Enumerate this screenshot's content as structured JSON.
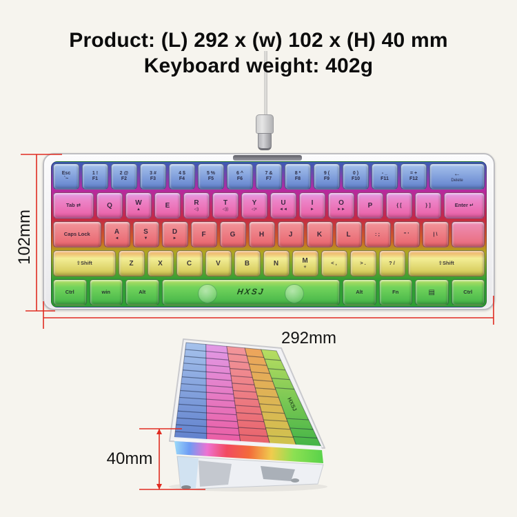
{
  "title": {
    "line1": "Product: (L) 292  x (w) 102  x (H) 40 mm",
    "line2": "Keyboard weight: 402g"
  },
  "dimensions": {
    "width_label": "292mm",
    "depth_label": "102mm",
    "height_label": "40mm"
  },
  "brand_logo": "HXSJ",
  "colors": {
    "dimension_line": "#e02b20",
    "row_blue": "#6181cd",
    "row_pink": "#ea5ea4",
    "row_red": "#e8636c",
    "row_yellow": "#d2c64e",
    "row_green": "#43b447",
    "case": "#f2f2f4"
  },
  "keyboard": {
    "rows": [
      {
        "name": "number-row",
        "c1": "#a6c2ec",
        "c2": "#6181cd",
        "keys": [
          {
            "t": "Esc",
            "b": "`~",
            "w": 1
          },
          {
            "t": "1 !",
            "b": "F1",
            "w": 1
          },
          {
            "t": "2 @",
            "b": "F2",
            "w": 1
          },
          {
            "t": "3 #",
            "b": "F3",
            "w": 1
          },
          {
            "t": "4 $",
            "b": "F4",
            "w": 1
          },
          {
            "t": "5 %",
            "b": "F5",
            "w": 1
          },
          {
            "t": "6 ^",
            "b": "F6",
            "w": 1
          },
          {
            "t": "7 &",
            "b": "F7",
            "w": 1
          },
          {
            "t": "8 *",
            "b": "F8",
            "w": 1
          },
          {
            "t": "9 (",
            "b": "F9",
            "w": 1
          },
          {
            "t": "0 )",
            "b": "F10",
            "w": 1
          },
          {
            "t": "- _",
            "b": "F11",
            "w": 1
          },
          {
            "t": "= +",
            "b": "F12",
            "w": 1
          },
          {
            "t": "←",
            "b": "Delete",
            "w": 2
          }
        ]
      },
      {
        "name": "qwerty-row",
        "c1": "#e19ae6",
        "cm": "#ec84c8",
        "c2": "#ea5ea4",
        "keys": [
          {
            "t": "Tab ⇄",
            "w": 1.5
          },
          {
            "t": "Q",
            "w": 1
          },
          {
            "t": "W",
            "b": "▲",
            "w": 1
          },
          {
            "t": "E",
            "w": 1
          },
          {
            "t": "R",
            "b": "◁)",
            "w": 1
          },
          {
            "t": "T",
            "b": "◁))",
            "w": 1
          },
          {
            "t": "Y",
            "b": "◁×",
            "w": 1
          },
          {
            "t": "U",
            "b": "◄◄",
            "w": 1
          },
          {
            "t": "I",
            "b": "►",
            "w": 1
          },
          {
            "t": "O",
            "b": "►►",
            "w": 1
          },
          {
            "t": "P",
            "w": 1
          },
          {
            "t": "{ [",
            "w": 1
          },
          {
            "t": "} ]",
            "w": 1
          },
          {
            "t": "Enter ↵",
            "w": 1.5
          }
        ]
      },
      {
        "name": "home-row",
        "c1": "#f2969b",
        "c2": "#e8636c",
        "keys": [
          {
            "t": "Caps Lock",
            "w": 1.75
          },
          {
            "t": "A",
            "b": "◄",
            "w": 1
          },
          {
            "t": "S",
            "b": "▼",
            "w": 1
          },
          {
            "t": "D",
            "b": "►",
            "w": 1
          },
          {
            "t": "F",
            "w": 1
          },
          {
            "t": "G",
            "w": 1
          },
          {
            "t": "H",
            "w": 1
          },
          {
            "t": "J",
            "w": 1
          },
          {
            "t": "K",
            "w": 1
          },
          {
            "t": "L",
            "w": 1
          },
          {
            "t": ": ;",
            "w": 1
          },
          {
            "t": "\" '",
            "w": 1
          },
          {
            "t": "| \\",
            "w": 1
          },
          {
            "t": "",
            "w": 1.25,
            "stub": true,
            "c1": "#ee8fb8",
            "c2": "#e96a78"
          }
        ]
      },
      {
        "name": "shift-row",
        "c1": "#eda45c",
        "cm": "#f3ee96",
        "c2": "#cfc34e",
        "keys": [
          {
            "t": "⇧Shift",
            "w": 2.25
          },
          {
            "t": "Z",
            "w": 1
          },
          {
            "t": "X",
            "w": 1
          },
          {
            "t": "C",
            "w": 1
          },
          {
            "t": "V",
            "w": 1
          },
          {
            "t": "B",
            "w": 1
          },
          {
            "t": "N",
            "w": 1
          },
          {
            "t": "M",
            "b": "☀",
            "w": 1
          },
          {
            "t": "< ,",
            "w": 1
          },
          {
            "t": "> .",
            "w": 1
          },
          {
            "t": "? /",
            "w": 1
          },
          {
            "t": "⇧Shift",
            "w": 2.75
          }
        ]
      },
      {
        "name": "bottom-row",
        "c1": "#b8dd62",
        "cm": "#72d35c",
        "c2": "#43b447",
        "keys": [
          {
            "t": "Ctrl",
            "w": 1.25
          },
          {
            "t": "win",
            "w": 1.25
          },
          {
            "t": "Alt",
            "w": 1.25
          },
          {
            "t": "",
            "w": 6.25,
            "space": true
          },
          {
            "t": "Alt",
            "w": 1.25
          },
          {
            "t": "Fn",
            "w": 1.25
          },
          {
            "t": "▤",
            "w": 1.25
          },
          {
            "t": "Ctrl",
            "w": 1.25
          }
        ]
      }
    ]
  }
}
